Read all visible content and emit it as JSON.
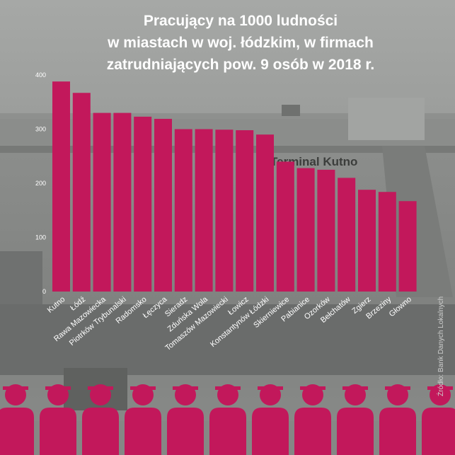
{
  "title_lines": [
    "Pracujący na 1000 ludności",
    "w miastach w woj. łódzkim, w firmach",
    "zatrudniających pow. 9 osób w 2018 r."
  ],
  "background_texts": [
    "Terminal Kutno"
  ],
  "source_note": "Źródło: Bank Danych Lokalnych",
  "colors": {
    "bar": "#c2185b",
    "title": "#ffffff",
    "tick": "#ffffff",
    "workers": "#c2185b"
  },
  "chart_data": {
    "type": "bar",
    "title": "Pracujący na 1000 ludności w miastach w woj. łódzkim, w firmach zatrudniających pow. 9 osób w 2018 r.",
    "categories": [
      "Kutno",
      "Łódź",
      "Rawa Mazowiecka",
      "Piotrków Trybunalski",
      "Radomsko",
      "Łęczyca",
      "Sieradz",
      "Zduńska Wola",
      "Tomaszów Mazowiecki",
      "Łowicz",
      "Konstantynów Łódzki",
      "Skierniewice",
      "Pabianice",
      "Ozorków",
      "Bełchatów",
      "Zgierz",
      "Brzeziny",
      "Głowno"
    ],
    "values": [
      388,
      367,
      330,
      330,
      323,
      319,
      300,
      300,
      299,
      298,
      290,
      240,
      228,
      225,
      210,
      188,
      184,
      167
    ],
    "yticks": [
      0,
      100,
      200,
      300,
      400
    ],
    "ylim": [
      0,
      400
    ],
    "grid": false,
    "legend": "none"
  }
}
